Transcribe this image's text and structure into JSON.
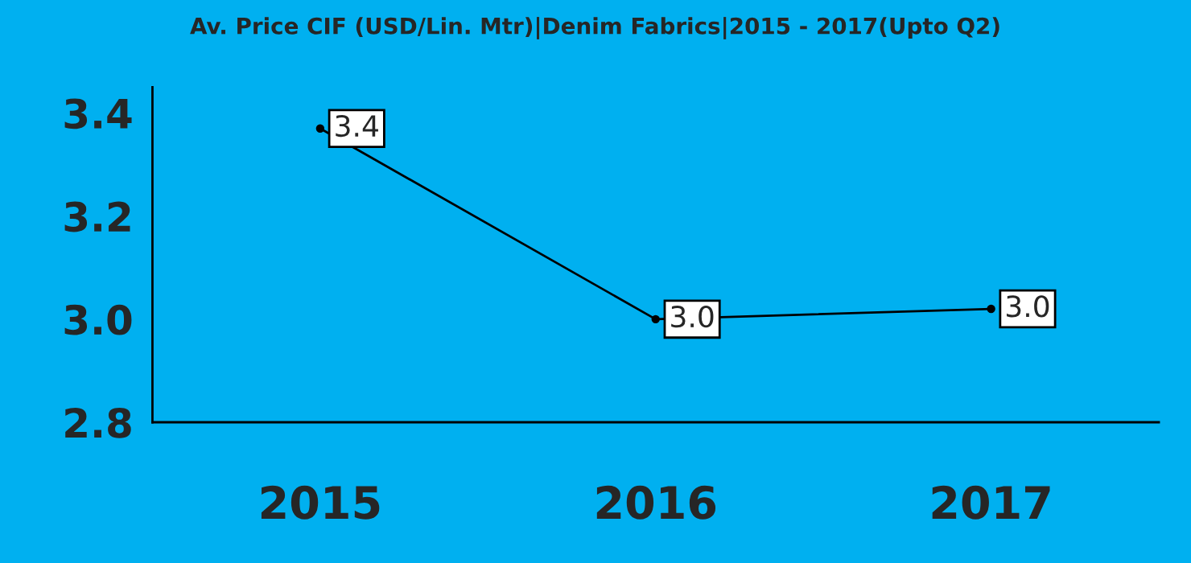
{
  "chart_data": {
    "type": "line",
    "title": "Av. Price CIF (USD/Lin. Mtr)|Denim Fabrics|2015 - 2017(Upto Q2)",
    "categories": [
      "2015",
      "2016",
      "2017"
    ],
    "series": [
      {
        "color": "#000000",
        "values": [
          3.37,
          3.0,
          3.02
        ],
        "value_labels": [
          "3.4",
          "3.0",
          "3.0"
        ]
      }
    ],
    "ylim": [
      2.8,
      3.45
    ],
    "yticks": [
      {
        "value": 2.8,
        "label": "2.8"
      },
      {
        "value": 3.0,
        "label": "3.0"
      },
      {
        "value": 3.2,
        "label": "3.2"
      },
      {
        "value": 3.4,
        "label": "3.4"
      }
    ],
    "grid": false,
    "marker": "circle",
    "line_style": "solid"
  }
}
